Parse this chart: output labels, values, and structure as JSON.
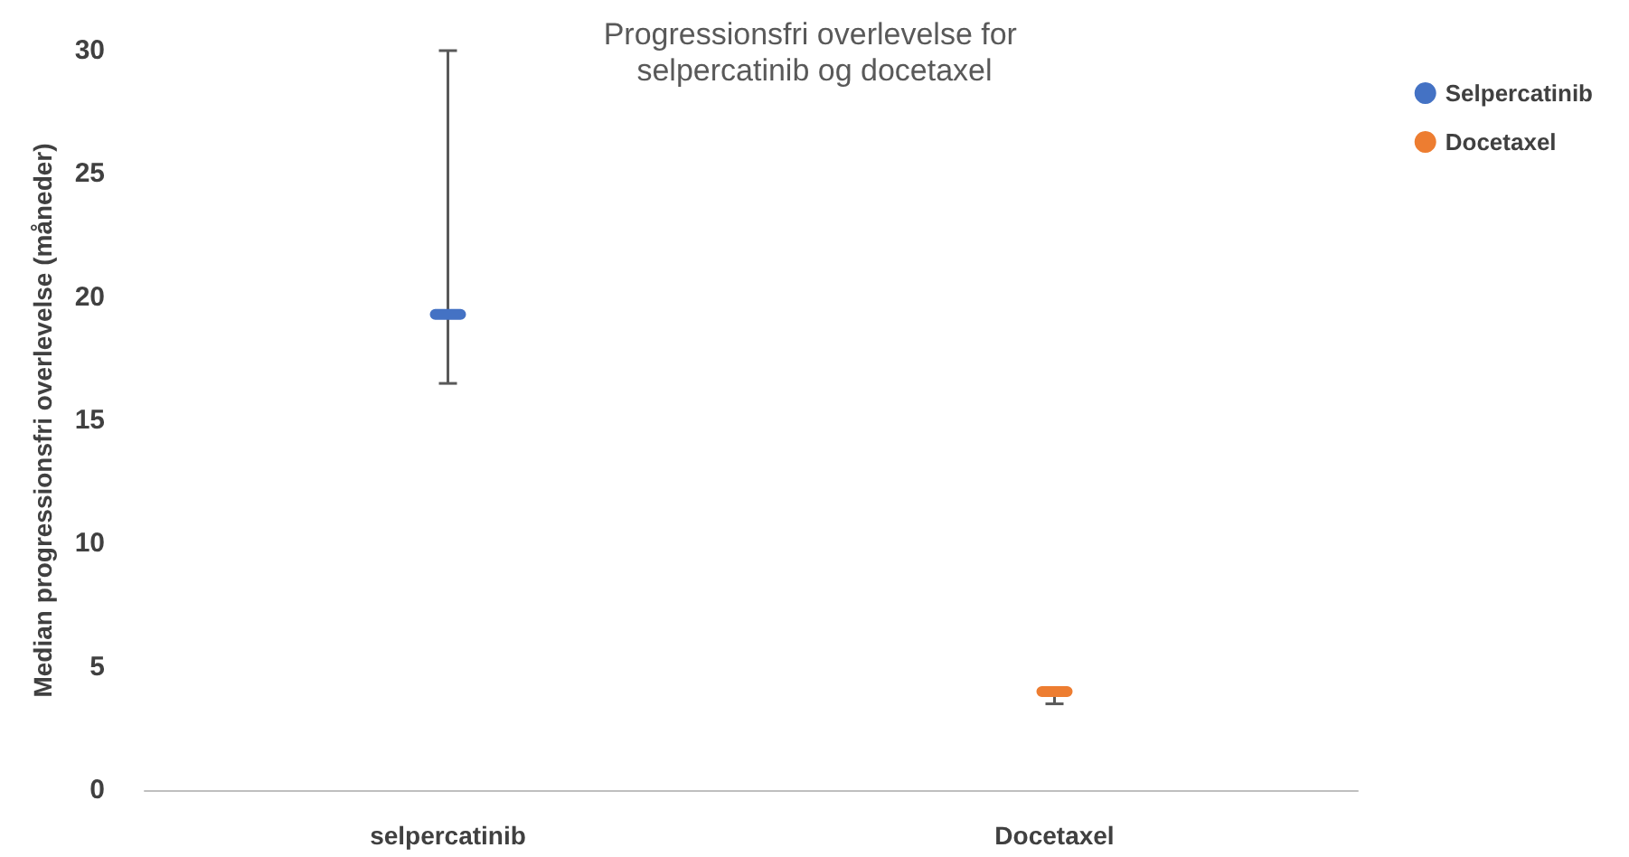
{
  "chart_data": {
    "type": "scatter",
    "title": "Progressionsfri overlevelse for selpercatinib og docetaxel",
    "ylabel": "Median progressionsfri overlevelse (måneder)",
    "categories": [
      "selpercatinib",
      "Docetaxel"
    ],
    "series": [
      {
        "name": "Selpercatinib",
        "color": "#4472c4",
        "values": [
          19.3,
          null
        ],
        "errors": [
          [
            16.5,
            30
          ],
          null
        ]
      },
      {
        "name": "Docetaxel",
        "color": "#ed7d31",
        "values": [
          null,
          4.0
        ],
        "errors": [
          null,
          [
            3.5,
            4.1
          ]
        ]
      }
    ],
    "ylim": [
      0,
      30
    ],
    "yticks": [
      0,
      5,
      10,
      15,
      20,
      25,
      30
    ],
    "grid": false,
    "legend": "top right"
  }
}
